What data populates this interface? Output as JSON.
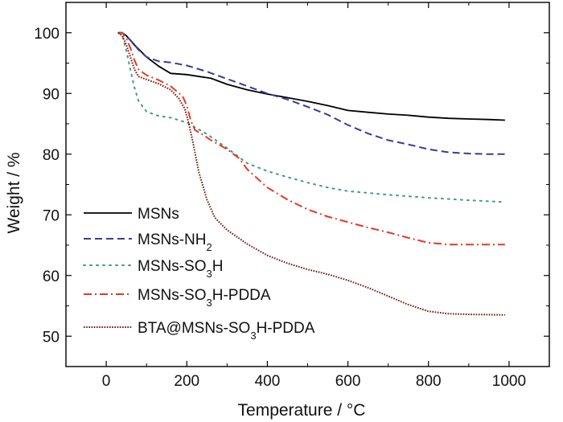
{
  "chart_data": {
    "type": "line",
    "xlabel": "Temperature / °C",
    "ylabel": "Weight / %",
    "xlim": [
      -100,
      1100
    ],
    "ylim": [
      45,
      105
    ],
    "xticks": [
      0,
      200,
      400,
      600,
      800,
      1000
    ],
    "yticks": [
      50,
      60,
      70,
      80,
      90,
      100
    ],
    "grid": false,
    "legend_position": "bottom-left",
    "series": [
      {
        "name": "MSNs",
        "name_parts": [
          {
            "t": "MSNs",
            "sub": false
          }
        ],
        "color": "#000000",
        "dash": "solid",
        "x": [
          30,
          40,
          50,
          70,
          100,
          130,
          160,
          200,
          260,
          300,
          350,
          400,
          450,
          500,
          550,
          600,
          650,
          700,
          750,
          800,
          850,
          900,
          950,
          990
        ],
        "y": [
          100,
          100,
          99.5,
          98,
          96,
          94.5,
          93.3,
          93.1,
          92.5,
          91.5,
          90.6,
          89.9,
          89.3,
          88.7,
          88.0,
          87.2,
          86.9,
          86.6,
          86.4,
          86.1,
          85.9,
          85.8,
          85.7,
          85.6
        ]
      },
      {
        "name": "MSNs-NH2",
        "name_parts": [
          {
            "t": "MSNs-NH",
            "sub": false
          },
          {
            "t": "2",
            "sub": true
          }
        ],
        "color": "#3a3a9a",
        "dash": "dashed",
        "x": [
          30,
          40,
          60,
          80,
          100,
          130,
          160,
          200,
          250,
          300,
          350,
          400,
          450,
          500,
          550,
          600,
          650,
          700,
          750,
          800,
          850,
          900,
          950,
          990
        ],
        "y": [
          100,
          100,
          98.8,
          97.2,
          96.0,
          95.3,
          95.1,
          94.6,
          93.6,
          92.4,
          91.2,
          90.0,
          89.0,
          87.8,
          86.5,
          84.8,
          83.4,
          82.3,
          81.6,
          80.8,
          80.3,
          80.1,
          80.0,
          80.0
        ]
      },
      {
        "name": "MSNs-SO3H",
        "name_parts": [
          {
            "t": "MSNs-SO",
            "sub": false
          },
          {
            "t": "3",
            "sub": true
          },
          {
            "t": "H",
            "sub": false
          }
        ],
        "color": "#3f9a8a",
        "dash": "dotted",
        "x": [
          30,
          40,
          50,
          60,
          70,
          80,
          100,
          130,
          160,
          200,
          250,
          300,
          350,
          400,
          450,
          500,
          550,
          600,
          700,
          800,
          900,
          990
        ],
        "y": [
          100,
          99.5,
          97,
          94,
          91,
          88.8,
          87,
          86.3,
          86.0,
          85.2,
          83.3,
          81.0,
          78.5,
          77.2,
          76.2,
          75.3,
          74.5,
          73.9,
          73.3,
          72.8,
          72.4,
          72.1
        ]
      },
      {
        "name": "MSNs-SO3H-PDDA",
        "name_parts": [
          {
            "t": "MSNs-SO",
            "sub": false
          },
          {
            "t": "3",
            "sub": true
          },
          {
            "t": "H-PDDA",
            "sub": false
          }
        ],
        "color": "#e23a22",
        "dash": "dashdot",
        "x": [
          30,
          40,
          50,
          60,
          70,
          80,
          100,
          130,
          160,
          190,
          200,
          210,
          220,
          240,
          260,
          300,
          330,
          350,
          400,
          450,
          500,
          550,
          600,
          650,
          700,
          750,
          800,
          850,
          900,
          990
        ],
        "y": [
          100,
          100,
          99,
          97.5,
          95.5,
          94,
          93,
          92.2,
          91.2,
          89.5,
          88,
          85.5,
          84.0,
          83.2,
          82.3,
          80.8,
          79.3,
          77.5,
          74.5,
          72.5,
          70.9,
          69.7,
          68.8,
          67.9,
          67.1,
          66.2,
          65.4,
          65.1,
          65.1,
          65.1
        ]
      },
      {
        "name": "BTA@MSNs-SO3H-PDDA",
        "name_parts": [
          {
            "t": "BTA@MSNs-SO",
            "sub": false
          },
          {
            "t": "3",
            "sub": true
          },
          {
            "t": "H-PDDA",
            "sub": false
          }
        ],
        "color": "#6b1a10",
        "dash": "densedot",
        "x": [
          30,
          40,
          50,
          60,
          70,
          80,
          100,
          130,
          160,
          180,
          195,
          205,
          215,
          230,
          250,
          270,
          300,
          350,
          400,
          450,
          500,
          550,
          600,
          650,
          700,
          750,
          800,
          850,
          900,
          990
        ],
        "y": [
          100,
          99.5,
          98,
          96,
          94,
          92.8,
          92.3,
          91.6,
          90.6,
          89.2,
          87.5,
          85,
          82,
          77,
          72.5,
          69.5,
          67.5,
          65.2,
          63.3,
          62.0,
          61.0,
          60.2,
          59.2,
          58.0,
          56.6,
          55.2,
          54.1,
          53.7,
          53.6,
          53.5
        ]
      }
    ]
  }
}
